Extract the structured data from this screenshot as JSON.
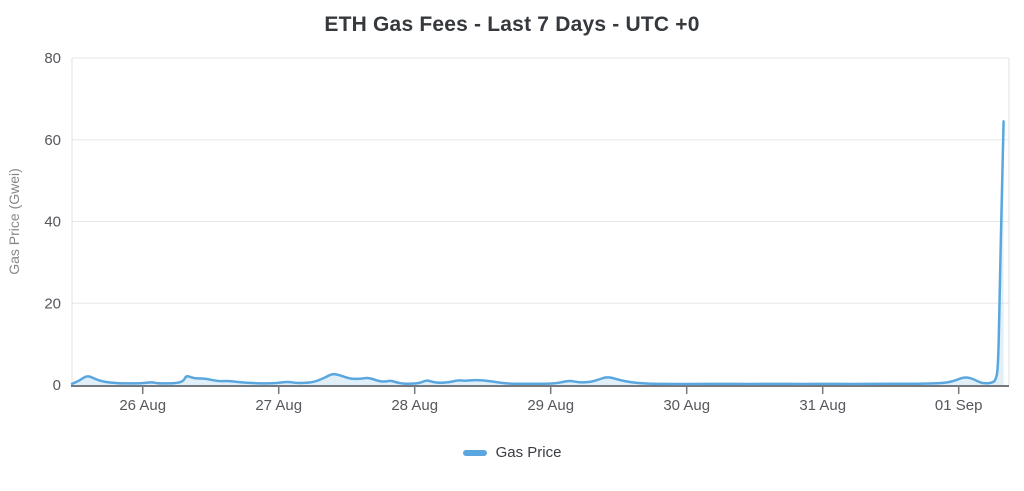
{
  "page": {
    "background": "#ffffff"
  },
  "chart_data": {
    "type": "line",
    "title": "ETH Gas Fees - Last 7 Days - UTC +0",
    "xlabel": "",
    "ylabel": "Gas Price (Gwei)",
    "ylim": [
      0,
      80
    ],
    "y_ticks": [
      0,
      20,
      40,
      60,
      80
    ],
    "x_domain_days": [
      -0.52,
      6.37
    ],
    "x_ticks": [
      {
        "t": 0,
        "label": "26 Aug"
      },
      {
        "t": 1,
        "label": "27 Aug"
      },
      {
        "t": 2,
        "label": "28 Aug"
      },
      {
        "t": 3,
        "label": "29 Aug"
      },
      {
        "t": 4,
        "label": "30 Aug"
      },
      {
        "t": 5,
        "label": "31 Aug"
      },
      {
        "t": 6,
        "label": "01 Sep"
      }
    ],
    "grid": "horizontal-only",
    "legend_position": "bottom",
    "series": [
      {
        "name": "Gas Price",
        "color": "#5aa7df",
        "fill": "rgba(90,167,223,0.18)",
        "points": [
          [
            -0.52,
            0.3
          ],
          [
            -0.48,
            0.8
          ],
          [
            -0.43,
            1.9
          ],
          [
            -0.4,
            2.2
          ],
          [
            -0.37,
            1.8
          ],
          [
            -0.32,
            1.1
          ],
          [
            -0.27,
            0.7
          ],
          [
            -0.21,
            0.5
          ],
          [
            -0.14,
            0.4
          ],
          [
            -0.05,
            0.4
          ],
          [
            0.02,
            0.5
          ],
          [
            0.07,
            0.7
          ],
          [
            0.11,
            0.4
          ],
          [
            0.18,
            0.4
          ],
          [
            0.26,
            0.5
          ],
          [
            0.3,
            1.0
          ],
          [
            0.32,
            2.3
          ],
          [
            0.36,
            1.8
          ],
          [
            0.4,
            1.6
          ],
          [
            0.46,
            1.6
          ],
          [
            0.51,
            1.2
          ],
          [
            0.57,
            0.9
          ],
          [
            0.62,
            1.0
          ],
          [
            0.68,
            0.8
          ],
          [
            0.74,
            0.6
          ],
          [
            0.8,
            0.5
          ],
          [
            0.87,
            0.4
          ],
          [
            0.95,
            0.4
          ],
          [
            1.02,
            0.6
          ],
          [
            1.07,
            0.8
          ],
          [
            1.12,
            0.5
          ],
          [
            1.19,
            0.5
          ],
          [
            1.26,
            0.7
          ],
          [
            1.34,
            1.8
          ],
          [
            1.39,
            2.7
          ],
          [
            1.43,
            2.6
          ],
          [
            1.49,
            1.9
          ],
          [
            1.54,
            1.5
          ],
          [
            1.6,
            1.5
          ],
          [
            1.65,
            1.8
          ],
          [
            1.7,
            1.4
          ],
          [
            1.74,
            0.9
          ],
          [
            1.79,
            0.8
          ],
          [
            1.82,
            1.1
          ],
          [
            1.87,
            0.6
          ],
          [
            1.92,
            0.3
          ],
          [
            1.98,
            0.3
          ],
          [
            2.04,
            0.5
          ],
          [
            2.09,
            1.2
          ],
          [
            2.13,
            0.7
          ],
          [
            2.19,
            0.5
          ],
          [
            2.26,
            0.7
          ],
          [
            2.32,
            1.2
          ],
          [
            2.37,
            1.0
          ],
          [
            2.42,
            1.2
          ],
          [
            2.48,
            1.2
          ],
          [
            2.54,
            1.0
          ],
          [
            2.6,
            0.7
          ],
          [
            2.67,
            0.4
          ],
          [
            2.74,
            0.3
          ],
          [
            2.85,
            0.3
          ],
          [
            2.95,
            0.3
          ],
          [
            3.04,
            0.4
          ],
          [
            3.11,
            0.9
          ],
          [
            3.15,
            1.0
          ],
          [
            3.21,
            0.6
          ],
          [
            3.29,
            0.7
          ],
          [
            3.35,
            1.3
          ],
          [
            3.4,
            1.9
          ],
          [
            3.45,
            1.8
          ],
          [
            3.51,
            1.2
          ],
          [
            3.58,
            0.7
          ],
          [
            3.67,
            0.4
          ],
          [
            3.77,
            0.3
          ],
          [
            3.92,
            0.25
          ],
          [
            4.1,
            0.25
          ],
          [
            4.27,
            0.3
          ],
          [
            4.46,
            0.25
          ],
          [
            4.65,
            0.3
          ],
          [
            4.85,
            0.25
          ],
          [
            5.04,
            0.3
          ],
          [
            5.23,
            0.25
          ],
          [
            5.42,
            0.3
          ],
          [
            5.61,
            0.3
          ],
          [
            5.79,
            0.35
          ],
          [
            5.89,
            0.5
          ],
          [
            5.96,
            0.9
          ],
          [
            6.01,
            1.6
          ],
          [
            6.05,
            1.9
          ],
          [
            6.1,
            1.6
          ],
          [
            6.15,
            0.7
          ],
          [
            6.19,
            0.4
          ],
          [
            6.24,
            0.5
          ],
          [
            6.27,
            1.0
          ],
          [
            6.29,
            4.0
          ],
          [
            6.3,
            20
          ],
          [
            6.32,
            50
          ],
          [
            6.33,
            64.5
          ]
        ]
      }
    ]
  },
  "legend": {
    "items": [
      {
        "label": "Gas Price",
        "color": "#5aa7df"
      }
    ]
  },
  "colors": {
    "title_text": "#35383d",
    "tick_text": "#54575c",
    "axis_label_text": "#85888d",
    "axis_line": "#75787d",
    "grid": "#e7e7e7",
    "plot_border": "#e0e0e0",
    "line": "#5aa7df"
  }
}
